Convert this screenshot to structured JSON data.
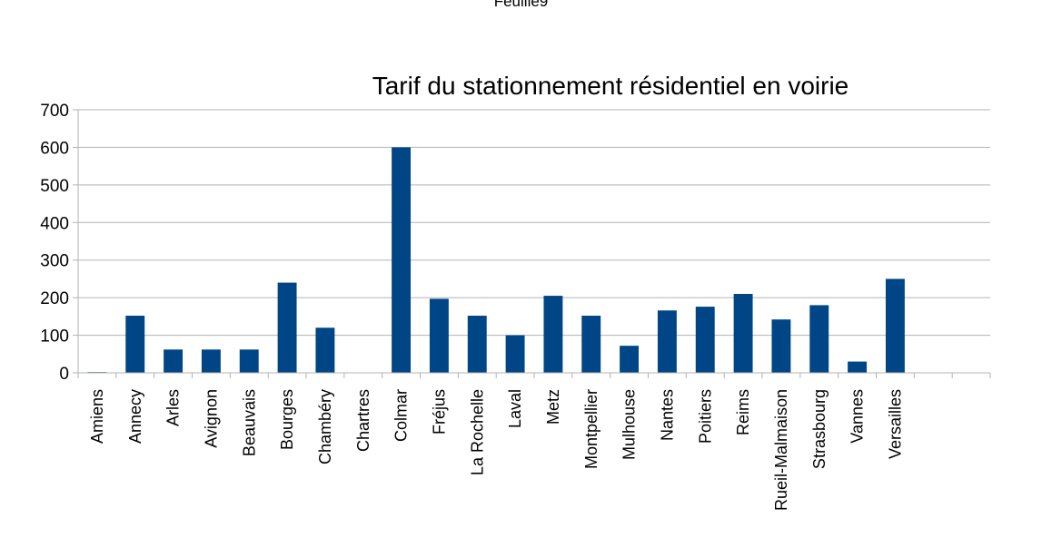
{
  "sheet_title": "Feuille9",
  "chart_data": {
    "type": "bar",
    "title": "Tarif du stationnement résidentiel en voirie",
    "xlabel": "",
    "ylabel": "",
    "ylim": [
      0,
      700
    ],
    "yticks": [
      0,
      100,
      200,
      300,
      400,
      500,
      600,
      700
    ],
    "grid": true,
    "categories": [
      "Amiens",
      "Annecy",
      "Arles",
      "Avignon",
      "Beauvais",
      "Bourges",
      "Chambéry",
      "Chartres",
      "Colmar",
      "Fréjus",
      "La Rochelle",
      "Laval",
      "Metz",
      "Montpellier",
      "Mulhouse",
      "Nantes",
      "Poitiers",
      "Reims",
      "Rueil-Malmaison",
      "Strasbourg",
      "Vannes",
      "Versailles",
      "",
      ""
    ],
    "values": [
      2,
      152,
      62,
      62,
      62,
      240,
      120,
      0,
      600,
      197,
      152,
      100,
      205,
      152,
      72,
      166,
      176,
      210,
      142,
      180,
      30,
      250,
      null,
      null
    ],
    "bar_color": "#004586",
    "grid_color": "#b3b3b3",
    "axis_color": "#b3b3b3"
  }
}
